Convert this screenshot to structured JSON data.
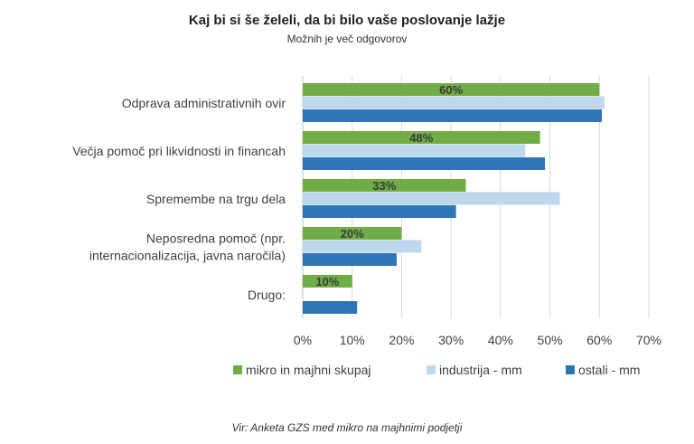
{
  "chart_data": {
    "type": "bar",
    "orientation": "horizontal",
    "title": "Kaj bi si še želeli, da bi bilo vaše poslovanje  lažje",
    "subtitle": "Možnih je več odgovorov",
    "categories": [
      [
        "Odprava administrativnih ovir"
      ],
      [
        "Večja pomoč pri likvidnosti  in financah"
      ],
      [
        "Spremembe na trgu dela"
      ],
      [
        "Neposredna pomoč  (npr.",
        "internacionalizacija, javna naročila)"
      ],
      [
        "Drugo:"
      ]
    ],
    "series": [
      {
        "name": "mikro in majhni skupaj",
        "color": "#70AD47",
        "values": [
          60,
          48,
          33,
          20,
          10
        ],
        "labels": [
          "60%",
          "48%",
          "33%",
          "20%",
          "10%"
        ]
      },
      {
        "name": "industrija - mm",
        "color": "#BDD7EE",
        "values": [
          61,
          45,
          52,
          24,
          null
        ]
      },
      {
        "name": "ostali - mm",
        "color": "#2E75B6",
        "values": [
          60.5,
          49,
          31,
          19,
          11
        ]
      }
    ],
    "xlim": [
      0,
      70
    ],
    "xticks": [
      0,
      10,
      20,
      30,
      40,
      50,
      60,
      70
    ],
    "xtick_labels": [
      "0%",
      "10%",
      "20%",
      "30%",
      "40%",
      "50%",
      "60%",
      "70%"
    ],
    "grid": "vertical",
    "legend_position": "bottom"
  },
  "source_note": "Vir: Anketa GZS med mikro na majhnimi podjetji"
}
